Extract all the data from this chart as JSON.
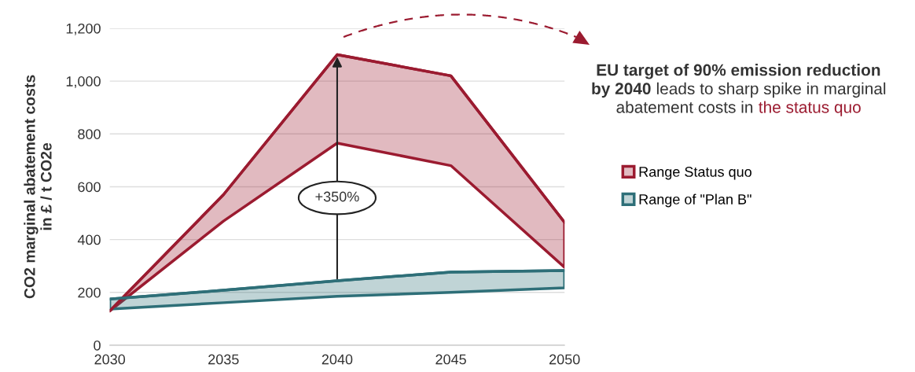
{
  "chart_data": {
    "type": "line",
    "ylabel": "CO2 marginal abatement costs\nin £ / t CO2e",
    "x": [
      2030,
      2035,
      2040,
      2045,
      2050
    ],
    "series": [
      {
        "name": "Range Status quo",
        "color": "#9b1b30",
        "values": [
          130,
          570,
          1100,
          1020,
          465
        ],
        "upper": [
          130,
          570,
          1100,
          1020,
          465
        ],
        "lower": [
          130,
          470,
          765,
          680,
          295
        ]
      },
      {
        "name": "Range of \"Plan B\"",
        "color": "#2e6f78",
        "values": [
          175,
          208,
          244,
          277,
          283
        ],
        "upper": [
          175,
          208,
          244,
          277,
          283
        ],
        "lower": [
          137,
          161,
          185,
          200,
          217
        ]
      }
    ],
    "xlim": [
      2030,
      2050
    ],
    "xticks": [
      2030,
      2035,
      2040,
      2045,
      2050
    ],
    "ylim": [
      0,
      1200
    ],
    "yticks": [
      0,
      200,
      400,
      600,
      800,
      {
        "value": 1000,
        "label": "1,000"
      },
      {
        "value": 1200,
        "label": "1,200"
      }
    ],
    "grid": "y",
    "legend": "right",
    "annotations": [
      "+350%",
      "EU target of 90% emission reduction",
      "by 2040",
      " leads to sharp spike in marginal",
      "abatement costs in ",
      "the status quo"
    ]
  }
}
